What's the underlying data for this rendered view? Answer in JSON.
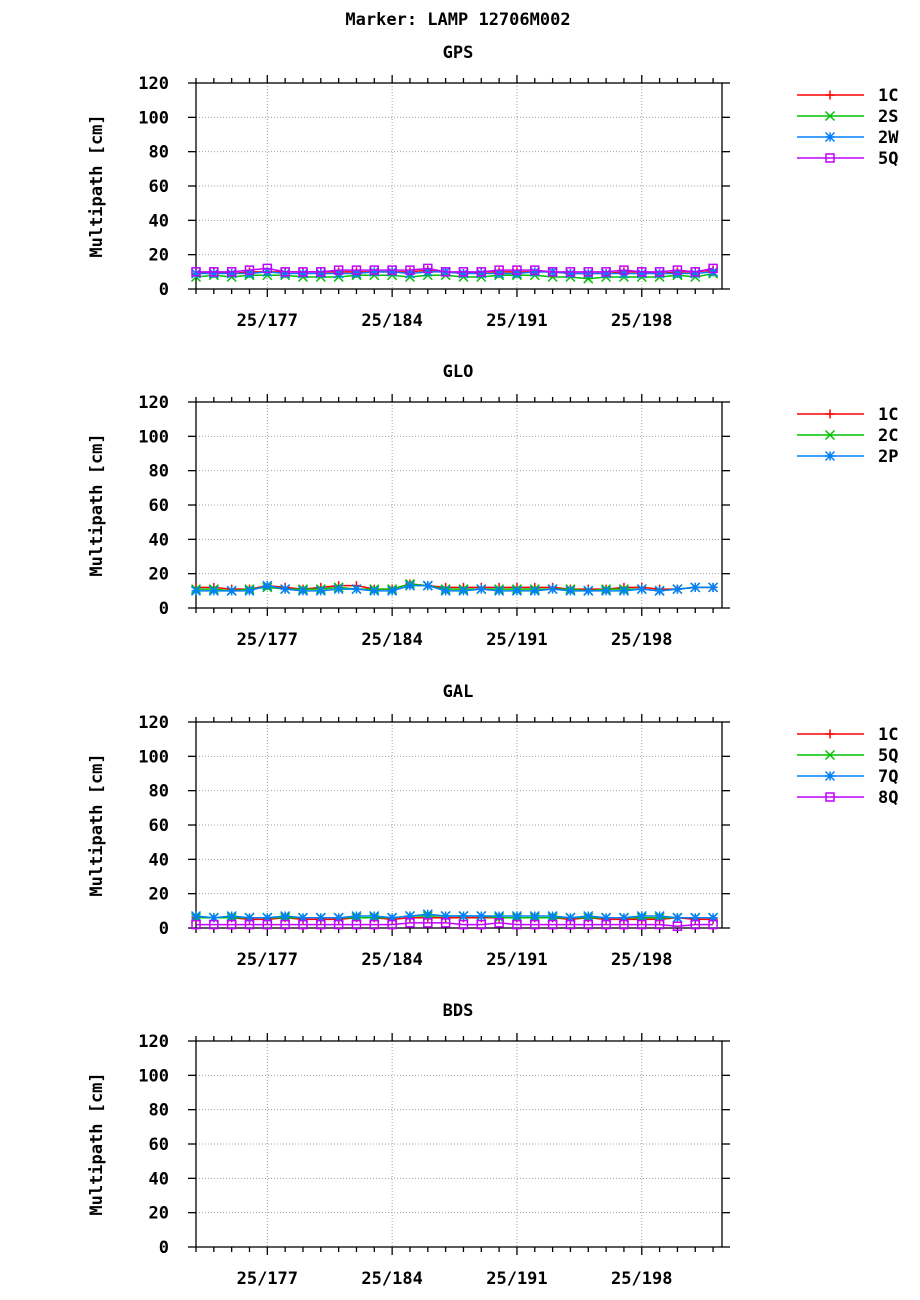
{
  "page": {
    "title": "Marker: LAMP 12706M002"
  },
  "x_ticks": [
    "25/177",
    "25/184",
    "25/191",
    "25/198"
  ],
  "chart_data": [
    {
      "type": "line",
      "title": "GPS",
      "ylabel": "Multipath [cm]",
      "xlabel": "",
      "ylim": [
        0,
        120
      ],
      "y_ticks": [
        0,
        20,
        40,
        60,
        80,
        100,
        120
      ],
      "x_ticks": [
        "25/177",
        "25/184",
        "25/191",
        "25/198"
      ],
      "grid": true,
      "legend_position": "right",
      "categories": [
        "25/173",
        "25/174",
        "25/175",
        "25/176",
        "25/177",
        "25/178",
        "25/179",
        "25/180",
        "25/181",
        "25/182",
        "25/183",
        "25/184",
        "25/185",
        "25/186",
        "25/187",
        "25/188",
        "25/189",
        "25/190",
        "25/191",
        "25/192",
        "25/193",
        "25/194",
        "25/195",
        "25/196",
        "25/197",
        "25/198",
        "25/199",
        "25/200",
        "25/201",
        "25/202"
      ],
      "series": [
        {
          "name": "1C",
          "color": "#ff0000",
          "marker": "plus",
          "values": [
            9,
            10,
            9,
            10,
            10,
            10,
            10,
            10,
            10,
            10,
            10,
            10,
            10,
            11,
            10,
            9,
            10,
            10,
            10,
            10,
            10,
            9,
            9,
            9,
            10,
            10,
            9,
            10,
            10,
            11
          ]
        },
        {
          "name": "2S",
          "color": "#00c000",
          "marker": "x",
          "values": [
            7,
            8,
            7,
            8,
            8,
            8,
            7,
            7,
            7,
            8,
            8,
            8,
            7,
            8,
            8,
            7,
            7,
            8,
            8,
            8,
            7,
            7,
            6,
            7,
            7,
            7,
            7,
            8,
            7,
            9
          ]
        },
        {
          "name": "2W",
          "color": "#0080ff",
          "marker": "star",
          "values": [
            9,
            9,
            9,
            9,
            10,
            9,
            9,
            9,
            9,
            9,
            10,
            10,
            9,
            10,
            10,
            9,
            9,
            9,
            9,
            10,
            10,
            9,
            9,
            9,
            9,
            9,
            9,
            9,
            9,
            10
          ]
        },
        {
          "name": "5Q",
          "color": "#c000ff",
          "marker": "square",
          "values": [
            10,
            10,
            10,
            11,
            12,
            10,
            10,
            10,
            11,
            11,
            11,
            11,
            11,
            12,
            10,
            10,
            10,
            11,
            11,
            11,
            10,
            10,
            10,
            10,
            11,
            10,
            10,
            11,
            10,
            12
          ]
        }
      ]
    },
    {
      "type": "line",
      "title": "GLO",
      "ylabel": "Multipath [cm]",
      "xlabel": "",
      "ylim": [
        0,
        120
      ],
      "y_ticks": [
        0,
        20,
        40,
        60,
        80,
        100,
        120
      ],
      "x_ticks": [
        "25/177",
        "25/184",
        "25/191",
        "25/198"
      ],
      "grid": true,
      "legend_position": "right",
      "categories": [
        "25/173",
        "25/174",
        "25/175",
        "25/176",
        "25/177",
        "25/178",
        "25/179",
        "25/180",
        "25/181",
        "25/182",
        "25/183",
        "25/184",
        "25/185",
        "25/186",
        "25/187",
        "25/188",
        "25/189",
        "25/190",
        "25/191",
        "25/192",
        "25/193",
        "25/194",
        "25/195",
        "25/196",
        "25/197",
        "25/198",
        "25/199",
        "25/200",
        "25/201",
        "25/202"
      ],
      "series": [
        {
          "name": "1C",
          "color": "#ff0000",
          "marker": "plus",
          "values": [
            12,
            12,
            11,
            11,
            13,
            12,
            11,
            12,
            13,
            13,
            11,
            11,
            14,
            13,
            12,
            12,
            12,
            12,
            12,
            12,
            12,
            11,
            11,
            11,
            12,
            12,
            11,
            11,
            12,
            12
          ]
        },
        {
          "name": "2C",
          "color": "#00c000",
          "marker": "x",
          "values": [
            11,
            11,
            10,
            11,
            12,
            11,
            11,
            11,
            12,
            11,
            11,
            11,
            14,
            13,
            11,
            11,
            11,
            11,
            11,
            11,
            11,
            11,
            10,
            11,
            11,
            11,
            10,
            11,
            12,
            12
          ]
        },
        {
          "name": "2P",
          "color": "#0080ff",
          "marker": "star",
          "values": [
            10,
            10,
            10,
            10,
            13,
            11,
            10,
            10,
            11,
            11,
            10,
            10,
            13,
            13,
            10,
            10,
            11,
            10,
            10,
            10,
            11,
            10,
            10,
            10,
            10,
            11,
            10,
            11,
            12,
            12
          ]
        }
      ]
    },
    {
      "type": "line",
      "title": "GAL",
      "ylabel": "Multipath [cm]",
      "xlabel": "",
      "ylim": [
        0,
        120
      ],
      "y_ticks": [
        0,
        20,
        40,
        60,
        80,
        100,
        120
      ],
      "x_ticks": [
        "25/177",
        "25/184",
        "25/191",
        "25/198"
      ],
      "grid": true,
      "legend_position": "right",
      "categories": [
        "25/173",
        "25/174",
        "25/175",
        "25/176",
        "25/177",
        "25/178",
        "25/179",
        "25/180",
        "25/181",
        "25/182",
        "25/183",
        "25/184",
        "25/185",
        "25/186",
        "25/187",
        "25/188",
        "25/189",
        "25/190",
        "25/191",
        "25/192",
        "25/193",
        "25/194",
        "25/195",
        "25/196",
        "25/197",
        "25/198",
        "25/199",
        "25/200",
        "25/201",
        "25/202"
      ],
      "series": [
        {
          "name": "1C",
          "color": "#ff0000",
          "marker": "plus",
          "values": [
            6,
            6,
            6,
            5,
            5,
            6,
            5,
            5,
            5,
            6,
            6,
            5,
            6,
            6,
            6,
            6,
            6,
            6,
            6,
            6,
            6,
            5,
            6,
            5,
            5,
            5,
            5,
            6,
            5,
            5
          ]
        },
        {
          "name": "5Q",
          "color": "#00c000",
          "marker": "x",
          "values": [
            6,
            6,
            6,
            6,
            6,
            6,
            6,
            6,
            6,
            6,
            6,
            6,
            7,
            7,
            7,
            7,
            7,
            6,
            6,
            6,
            6,
            6,
            6,
            6,
            6,
            6,
            6,
            6,
            6,
            6
          ]
        },
        {
          "name": "7Q",
          "color": "#0080ff",
          "marker": "star",
          "values": [
            7,
            6,
            7,
            6,
            6,
            7,
            6,
            6,
            6,
            7,
            7,
            6,
            7,
            8,
            7,
            7,
            7,
            7,
            7,
            7,
            7,
            6,
            7,
            6,
            6,
            7,
            7,
            6,
            6,
            6
          ]
        },
        {
          "name": "8Q",
          "color": "#c000ff",
          "marker": "square",
          "values": [
            2,
            2,
            2,
            2,
            2,
            2,
            2,
            2,
            2,
            2,
            2,
            2,
            3,
            3,
            3,
            2,
            2,
            3,
            2,
            2,
            2,
            2,
            2,
            2,
            2,
            2,
            2,
            1,
            2,
            2
          ]
        }
      ]
    },
    {
      "type": "line",
      "title": "BDS",
      "ylabel": "Multipath [cm]",
      "xlabel": "",
      "ylim": [
        0,
        120
      ],
      "y_ticks": [
        0,
        20,
        40,
        60,
        80,
        100,
        120
      ],
      "x_ticks": [
        "25/177",
        "25/184",
        "25/191",
        "25/198"
      ],
      "grid": true,
      "legend_position": "right",
      "categories": [],
      "series": []
    }
  ]
}
